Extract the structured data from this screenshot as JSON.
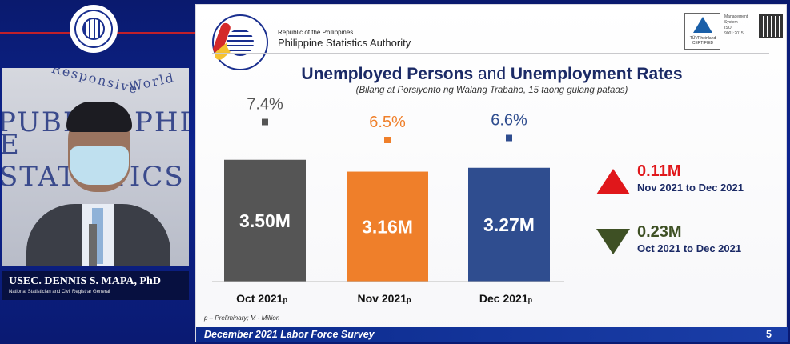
{
  "speaker": {
    "name": "USEC. DENNIS S. MAPA, PhD",
    "title": "National Statistician and Civil Registrar General",
    "wall_words": [
      "PUBLIC",
      "PHILI",
      "E STATISTICS",
      "Responsive",
      "World"
    ]
  },
  "header": {
    "republic": "Republic of the Philippines",
    "agency": "Philippine Statistics Authority",
    "cert_label": "TÜVRheinland CERTIFIED",
    "cert_text": [
      "Management",
      "System",
      "ISO 9001:2015"
    ]
  },
  "colors": {
    "oct": "#555555",
    "nov": "#ef7f2a",
    "dec": "#2f4d8f",
    "up": "#e0171b",
    "down": "#3e5024"
  },
  "chart_data": {
    "type": "bar",
    "title_bold_1": "Unemployed Persons",
    "title_mid": "and",
    "title_bold_2": "Unemployment Rates",
    "subtitle": "(Bilang at Porsiyento ng Walang Trabaho, 15 taong gulang pataas)",
    "categories": [
      "Oct 2021",
      "Nov 2021",
      "Dec 2021"
    ],
    "category_suffix": "p",
    "series": [
      {
        "name": "Unemployed persons (millions)",
        "values": [
          3.5,
          3.16,
          3.27
        ],
        "labels": [
          "3.50M",
          "3.16M",
          "3.27M"
        ]
      },
      {
        "name": "Unemployment rate (%)",
        "values": [
          7.4,
          6.5,
          6.6
        ],
        "labels": [
          "7.4%",
          "6.5%",
          "6.6%"
        ]
      }
    ],
    "changes": [
      {
        "direction": "up",
        "value": "0.11M",
        "description": "Nov 2021 to Dec 2021"
      },
      {
        "direction": "down",
        "value": "0.23M",
        "description": "Oct 2021 to Dec 2021"
      }
    ],
    "note": "p – Preliminary; M - Million"
  },
  "footer": {
    "text": "December 2021 Labor Force Survey",
    "page": "5"
  }
}
